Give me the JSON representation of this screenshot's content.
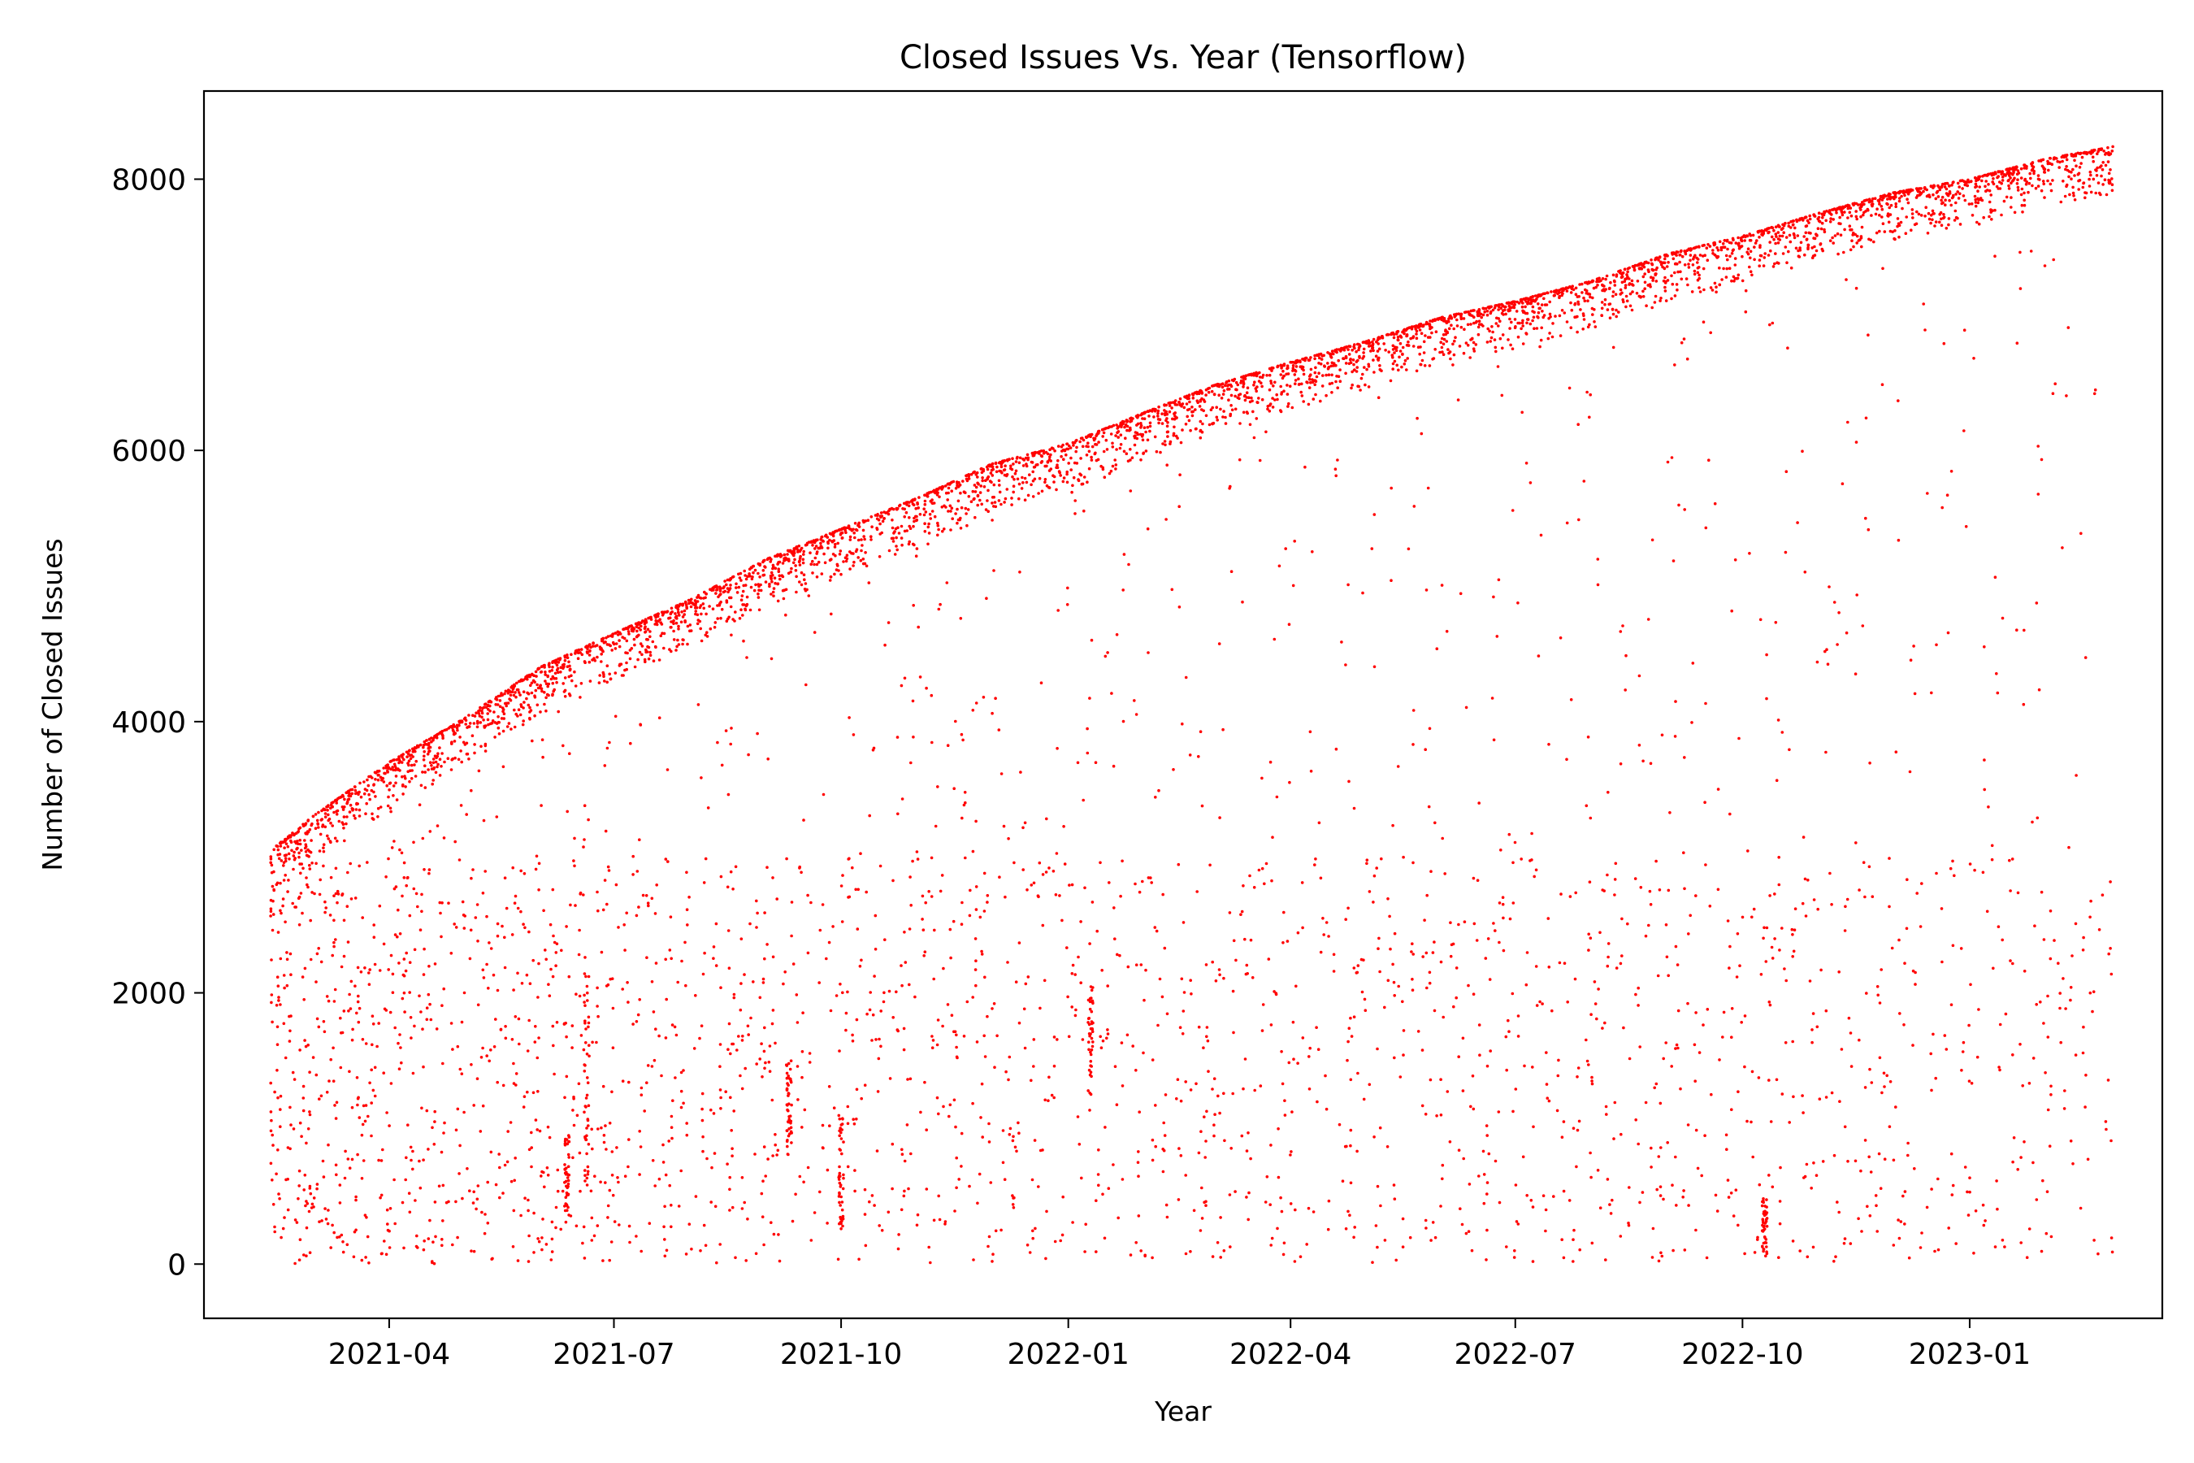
{
  "chart_data": {
    "type": "scatter",
    "title": "Closed Issues Vs. Year (Tensorflow)",
    "xlabel": "Year",
    "ylabel": "Number of Closed Issues",
    "x_axis_type": "date",
    "xlim": [
      "2021-01-16",
      "2023-03-20"
    ],
    "ylim": [
      -400,
      8650
    ],
    "x_ticks": [
      "2021-04",
      "2021-07",
      "2021-10",
      "2022-01",
      "2022-04",
      "2022-07",
      "2022-10",
      "2023-01"
    ],
    "y_ticks": [
      0,
      2000,
      4000,
      6000,
      8000
    ],
    "grid": false,
    "legend": "none",
    "series": [
      {
        "marker_color": "#ff0000",
        "x_range": [
          "2021-02-12",
          "2023-02-28"
        ],
        "y_range": [
          0,
          8250
        ],
        "upper_envelope": [
          {
            "x": "2021-02-12",
            "y": 3050
          },
          {
            "x": "2021-03-01",
            "y": 3300
          },
          {
            "x": "2021-04-01",
            "y": 3700
          },
          {
            "x": "2021-05-01",
            "y": 4020
          },
          {
            "x": "2021-06-01",
            "y": 4400
          },
          {
            "x": "2021-07-01",
            "y": 4650
          },
          {
            "x": "2021-08-01",
            "y": 4900
          },
          {
            "x": "2021-09-01",
            "y": 5200
          },
          {
            "x": "2021-10-01",
            "y": 5420
          },
          {
            "x": "2021-11-01",
            "y": 5650
          },
          {
            "x": "2021-12-01",
            "y": 5900
          },
          {
            "x": "2022-01-01",
            "y": 6050
          },
          {
            "x": "2022-02-01",
            "y": 6280
          },
          {
            "x": "2022-03-01",
            "y": 6480
          },
          {
            "x": "2022-04-01",
            "y": 6650
          },
          {
            "x": "2022-05-01",
            "y": 6800
          },
          {
            "x": "2022-06-01",
            "y": 6980
          },
          {
            "x": "2022-07-01",
            "y": 7100
          },
          {
            "x": "2022-08-01",
            "y": 7250
          },
          {
            "x": "2022-09-01",
            "y": 7450
          },
          {
            "x": "2022-10-01",
            "y": 7580
          },
          {
            "x": "2022-11-01",
            "y": 7750
          },
          {
            "x": "2022-12-01",
            "y": 7900
          },
          {
            "x": "2023-01-01",
            "y": 8000
          },
          {
            "x": "2023-02-01",
            "y": 8150
          },
          {
            "x": "2023-02-28",
            "y": 8240
          }
        ],
        "vertical_clusters": [
          {
            "x": "2021-06-12",
            "y_range": [
              300,
              1000
            ]
          },
          {
            "x": "2021-06-20",
            "y_range": [
              600,
              2200
            ]
          },
          {
            "x": "2021-09-10",
            "y_range": [
              800,
              1500
            ]
          },
          {
            "x": "2021-10-01",
            "y_range": [
              200,
              1100
            ]
          },
          {
            "x": "2022-01-10",
            "y_range": [
              1250,
              2050
            ]
          },
          {
            "x": "2022-10-10",
            "y_range": [
              50,
              500
            ]
          }
        ]
      }
    ]
  }
}
